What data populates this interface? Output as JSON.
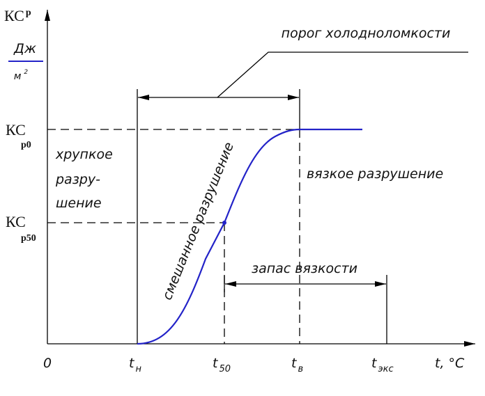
{
  "y_axis": {
    "label": {
      "main": "КС",
      "sub": "р"
    },
    "unit": {
      "numerator": "Дж",
      "denominator": "м",
      "power": "2"
    }
  },
  "levels": [
    {
      "main": "КС",
      "sub": "р0"
    },
    {
      "main": "КС",
      "sub": "р50"
    }
  ],
  "regions": {
    "brittle": [
      "хрупкое",
      "разру-",
      "шение"
    ],
    "ductile": "вязкое разрушение",
    "mixed": "смешанное разрушение"
  },
  "annotations": {
    "threshold": "порог холодноломкости",
    "margin": "запас вязкости"
  },
  "x_axis": {
    "origin": "0",
    "ticks": [
      {
        "main": "t",
        "sub": "н"
      },
      {
        "main": "t",
        "sub": "50"
      },
      {
        "main": "t",
        "sub": "в"
      },
      {
        "main": "t",
        "sub": "экс"
      }
    ],
    "label": "t, °C"
  }
}
